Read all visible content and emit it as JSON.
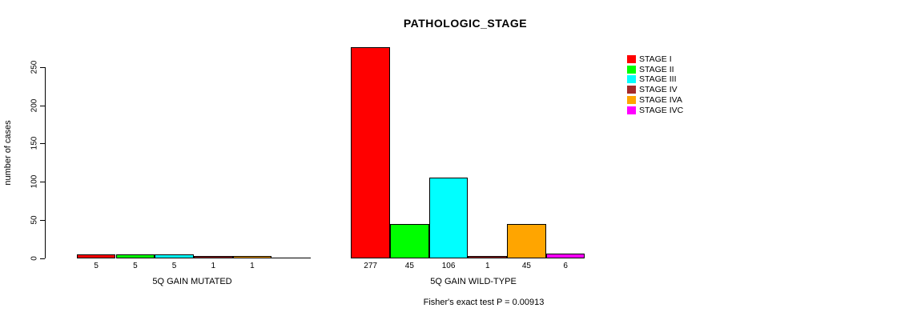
{
  "title": "PATHOLOGIC_STAGE",
  "footer": "Fisher's exact test P = 0.00913",
  "y_axis": {
    "label": "number of cases",
    "ticks": [
      "0",
      "50",
      "100",
      "150",
      "200",
      "250"
    ]
  },
  "legend": {
    "items": [
      {
        "label": "STAGE I",
        "color": "#ff0000"
      },
      {
        "label": "STAGE II",
        "color": "#00ff00"
      },
      {
        "label": "STAGE III",
        "color": "#00ffff"
      },
      {
        "label": "STAGE IV",
        "color": "#a52a2a"
      },
      {
        "label": "STAGE IVA",
        "color": "#ffa500"
      },
      {
        "label": "STAGE IVC",
        "color": "#ff00ff"
      }
    ]
  },
  "chart_data": {
    "type": "bar",
    "title": "PATHOLOGIC_STAGE",
    "xlabel": "",
    "ylabel": "number of cases",
    "ylim": [
      0,
      250
    ],
    "y_tick_values": [
      0,
      50,
      100,
      150,
      200,
      250
    ],
    "grid": false,
    "legend_position": "right",
    "stages": [
      "STAGE I",
      "STAGE II",
      "STAGE III",
      "STAGE IV",
      "STAGE IVA",
      "STAGE IVC"
    ],
    "stage_colors": [
      "#ff0000",
      "#00ff00",
      "#00ffff",
      "#a52a2a",
      "#ffa500",
      "#ff00ff"
    ],
    "groups": [
      {
        "label": "5Q GAIN MUTATED",
        "values": [
          5,
          5,
          5,
          1,
          1,
          0
        ],
        "value_labels": [
          "5",
          "5",
          "5",
          "1",
          "1",
          ""
        ]
      },
      {
        "label": "5Q GAIN WILD-TYPE",
        "values": [
          277,
          45,
          106,
          1,
          45,
          6
        ],
        "value_labels": [
          "277",
          "45",
          "106",
          "1",
          "45",
          "6"
        ]
      }
    ],
    "annotation": "Fisher's exact test P = 0.00913"
  }
}
